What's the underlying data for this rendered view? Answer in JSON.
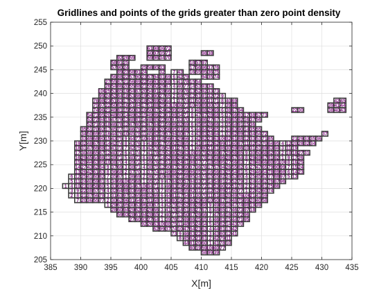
{
  "chart_data": {
    "type": "scatter",
    "title": "Gridlines and points of the grids greater than zero point density",
    "xlabel": "X[m]",
    "ylabel": "Y[m]",
    "xlim": [
      385,
      435
    ],
    "ylim": [
      205,
      255
    ],
    "xticks": [
      385,
      390,
      395,
      400,
      405,
      410,
      415,
      420,
      425,
      430,
      435
    ],
    "yticks": [
      205,
      210,
      215,
      220,
      225,
      230,
      235,
      240,
      245,
      250,
      255
    ],
    "grid": true,
    "box": true,
    "cell_size": 1,
    "label_color": "#7F1A7F",
    "label_font_size": 7,
    "series": [
      {
        "name": "",
        "marker": "square",
        "edge_color": "#3C3C3C",
        "face_color": "none",
        "x_bounds": [
          387.5,
          434.5
        ],
        "y_bounds": [
          205.5,
          251
        ]
      }
    ],
    "region_polygons": [
      {
        "points": [
          [
            388,
            219
          ],
          [
            389,
            217.5
          ],
          [
            394,
            216.5
          ],
          [
            397,
            214
          ],
          [
            400,
            212.5
          ],
          [
            405,
            210.5
          ],
          [
            409,
            207
          ],
          [
            412,
            205.5
          ],
          [
            414,
            207
          ],
          [
            415,
            209.5
          ],
          [
            418,
            214
          ],
          [
            421,
            217.5
          ],
          [
            422,
            219.5
          ],
          [
            424,
            221.5
          ],
          [
            427,
            223
          ],
          [
            427,
            226
          ],
          [
            428,
            227.5
          ],
          [
            426,
            228.5
          ],
          [
            423,
            229.5
          ],
          [
            421,
            231.5
          ],
          [
            419,
            233
          ],
          [
            421,
            235
          ],
          [
            420,
            236.5
          ],
          [
            417,
            236.5
          ],
          [
            416,
            238.5
          ],
          [
            413,
            240
          ],
          [
            412,
            242
          ],
          [
            409,
            243
          ],
          [
            406,
            245
          ],
          [
            405,
            244
          ],
          [
            404,
            245
          ],
          [
            402,
            244
          ],
          [
            400,
            245
          ],
          [
            398,
            245
          ],
          [
            396,
            244.5
          ],
          [
            395,
            244
          ],
          [
            394,
            242
          ],
          [
            393,
            240
          ],
          [
            392,
            238
          ],
          [
            391,
            234
          ],
          [
            390,
            231
          ],
          [
            389,
            228
          ],
          [
            389,
            224
          ],
          [
            388,
            222
          ],
          [
            387.5,
            220.5
          ]
        ]
      },
      {
        "points": [
          [
            419,
            230
          ],
          [
            425,
            230.5
          ],
          [
            428,
            231
          ],
          [
            430,
            231.5
          ],
          [
            431,
            233
          ],
          [
            431,
            231
          ],
          [
            428,
            228.5
          ],
          [
            426,
            229
          ],
          [
            420,
            229.5
          ]
        ]
      },
      {
        "points": [
          [
            396,
            245
          ],
          [
            399,
            245
          ],
          [
            398,
            246
          ],
          [
            399,
            247
          ],
          [
            399,
            248.5
          ],
          [
            396,
            248.5
          ],
          [
            396,
            247
          ],
          [
            395,
            246
          ]
        ]
      },
      {
        "points": [
          [
            401,
            247
          ],
          [
            405,
            247
          ],
          [
            405.5,
            249
          ],
          [
            405,
            250.5
          ],
          [
            401.5,
            250.5
          ],
          [
            401,
            249
          ]
        ]
      },
      {
        "points": [
          [
            400,
            245
          ],
          [
            404,
            245
          ],
          [
            404,
            246.5
          ],
          [
            400,
            246.5
          ]
        ]
      },
      {
        "points": [
          [
            408,
            244
          ],
          [
            411,
            244
          ],
          [
            411,
            247
          ],
          [
            408,
            247
          ]
        ]
      },
      {
        "points": [
          [
            410,
            243
          ],
          [
            413,
            243
          ],
          [
            413,
            246.5
          ],
          [
            410,
            246.5
          ]
        ]
      },
      {
        "points": [
          [
            410.5,
            248
          ],
          [
            412.5,
            248
          ],
          [
            412.5,
            249
          ],
          [
            410.5,
            249
          ]
        ]
      },
      {
        "points": [
          [
            431.5,
            236
          ],
          [
            434.5,
            236
          ],
          [
            434.5,
            238.5
          ],
          [
            432.5,
            239.5
          ],
          [
            431.5,
            238
          ]
        ]
      },
      {
        "points": [
          [
            425.5,
            236
          ],
          [
            427,
            236
          ],
          [
            427,
            237.2
          ],
          [
            425.5,
            237.2
          ]
        ]
      }
    ],
    "point_labels": [
      "1",
      "2",
      "3",
      "4",
      "5",
      "6",
      "7",
      "8",
      "9",
      "10",
      "11",
      "12",
      "13",
      "14",
      "15",
      "16",
      "17",
      "18",
      "19",
      "20",
      "21",
      "22",
      "23",
      "24",
      "25",
      "26",
      "27",
      "28",
      "29",
      "30",
      "31",
      "32",
      "33",
      "34",
      "35",
      "36",
      "37",
      "38",
      "39",
      "40",
      "41",
      "42",
      "43",
      "44",
      "45",
      "46",
      "47",
      "48",
      "49",
      "50",
      "51",
      "52",
      "53",
      "54",
      "55",
      "56",
      "57",
      "58",
      "59",
      "60",
      "61",
      "62",
      "63",
      "64",
      "65",
      "66",
      "67",
      "68",
      "69",
      "70",
      "71",
      "72",
      "73",
      "74",
      "75",
      "76",
      "77",
      "78",
      "79",
      "80",
      "81",
      "82",
      "83",
      "84",
      "85",
      "86",
      "87",
      "88",
      "89",
      "90",
      "91",
      "92",
      "93",
      "94",
      "95",
      "96",
      "97",
      "98",
      "99",
      "100"
    ]
  }
}
